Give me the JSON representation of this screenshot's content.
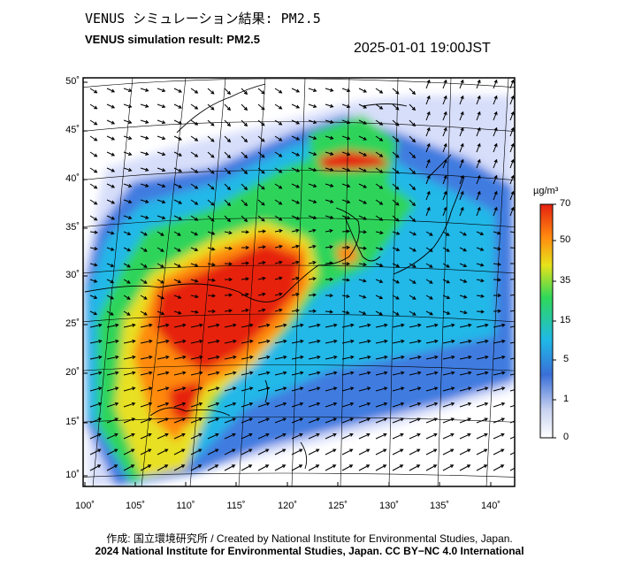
{
  "header": {
    "title_jp": "VENUS シミュレーション結果: PM2.5",
    "title_en": "VENUS simulation result: PM2.5",
    "datetime": "2025-01-01 19:00JST"
  },
  "map": {
    "lat_labels": [
      "50˚",
      "45˚",
      "40˚",
      "35˚",
      "30˚",
      "25˚",
      "20˚",
      "15˚",
      "10˚"
    ],
    "lon_labels": [
      "100˚",
      "105˚",
      "110˚",
      "115˚",
      "120˚",
      "125˚",
      "130˚",
      "135˚",
      "140˚"
    ]
  },
  "colorbar": {
    "unit": "µg/m³",
    "ticks": [
      "70",
      "50",
      "35",
      "15",
      "5",
      "1",
      "0"
    ],
    "colors": [
      "#ffffff",
      "#3a6fd8",
      "#1fb9e6",
      "#2fd85a",
      "#e7e21a",
      "#ff8a10",
      "#e62010"
    ]
  },
  "footer": {
    "credit": "作成: 国立環境研究所 / Created by National Institute for Environmental Studies, Japan.",
    "copyright": "2024 National Institute for Environmental Studies, Japan. CC BY−NC 4.0 International"
  }
}
